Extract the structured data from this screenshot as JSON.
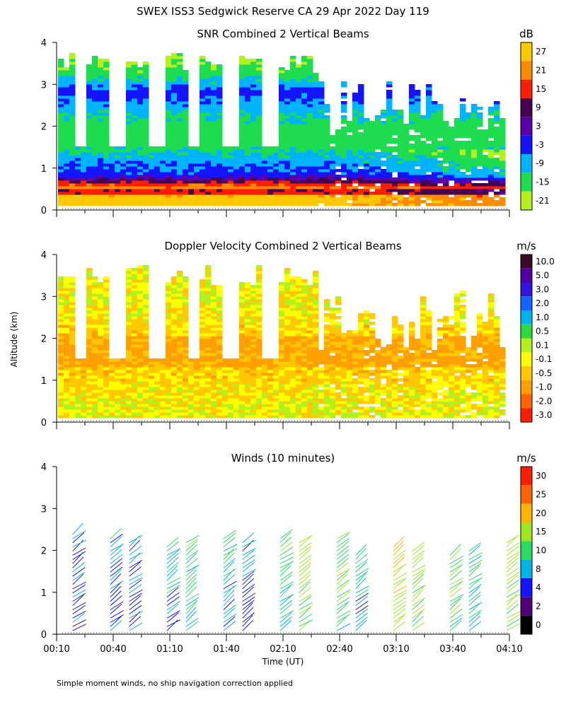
{
  "title": "SWEX ISS3 Sedgwick Reserve CA  29 Apr 2022 Day 119",
  "ylabel": "Altitude (km)",
  "xlabel": "Time (UT)",
  "footnote": "Simple moment winds, no ship navigation correction applied",
  "x_ticks": [
    "00:10",
    "00:40",
    "01:10",
    "01:40",
    "02:10",
    "02:40",
    "03:10",
    "03:40",
    "04:10"
  ],
  "y_ticks": [
    "0",
    "1",
    "2",
    "3",
    "4"
  ],
  "chart_data": [
    {
      "type": "heatmap",
      "title": "SNR Combined 2 Vertical Beams",
      "xlabel": "Time (UT)",
      "ylabel": "Altitude (km)",
      "xlim": [
        "00:10",
        "04:10"
      ],
      "ylim": [
        0,
        4
      ],
      "colorbar": {
        "unit": "dB",
        "labels": [
          "27",
          "21",
          "15",
          "9",
          "3",
          "-3",
          "-9",
          "-15",
          "-21"
        ],
        "colors": [
          "#ffc800",
          "#ff8c00",
          "#ff1e00",
          "#460050",
          "#5a00a8",
          "#1414ff",
          "#00b4ff",
          "#1edc50",
          "#b4f01e"
        ]
      },
      "profile": [
        {
          "alt_km": 0.3,
          "snr_db": 27
        },
        {
          "alt_km": 0.4,
          "snr_db": 9
        },
        {
          "alt_km": 0.5,
          "snr_db": 21
        },
        {
          "alt_km": 0.6,
          "snr_db": 15
        },
        {
          "alt_km": 0.8,
          "snr_db": -3
        },
        {
          "alt_km": 1.2,
          "snr_db": -9
        },
        {
          "alt_km": 1.5,
          "snr_db": -15
        },
        {
          "alt_km": 2.0,
          "snr_db": -15
        },
        {
          "alt_km": 2.8,
          "snr_db": -3
        },
        {
          "alt_km": 3.2,
          "snr_db": -15
        },
        {
          "alt_km": 3.9,
          "snr_db": -21
        }
      ]
    },
    {
      "type": "heatmap",
      "title": "Doppler Velocity Combined 2 Vertical Beams",
      "xlabel": "Time (UT)",
      "ylabel": "Altitude (km)",
      "xlim": [
        "00:10",
        "04:10"
      ],
      "ylim": [
        0,
        4
      ],
      "colorbar": {
        "unit": "m/s",
        "labels": [
          "10.0",
          "5.0",
          "3.0",
          "2.0",
          "1.0",
          "0.5",
          "0.1",
          "-0.1",
          "-0.5",
          "-1.0",
          "-2.0",
          "-3.0"
        ],
        "colors": [
          "#3c0a28",
          "#5000a0",
          "#3214dc",
          "#1464ff",
          "#00b4f0",
          "#28dc3c",
          "#b4f01e",
          "#ffff00",
          "#ffc800",
          "#ffa000",
          "#ff6400",
          "#ff1e00"
        ]
      },
      "profile": [
        {
          "alt_km": 0.3,
          "velocity_ms": -0.1
        },
        {
          "alt_km": 1.2,
          "velocity_ms": -0.5
        },
        {
          "alt_km": 2.0,
          "velocity_ms": -0.5
        },
        {
          "alt_km": 2.8,
          "velocity_ms": -0.1
        },
        {
          "alt_km": 3.2,
          "velocity_ms": -0.1
        }
      ]
    },
    {
      "type": "scatter",
      "title": "Winds (10 minutes)",
      "xlabel": "Time (UT)",
      "ylabel": "Altitude (km)",
      "xlim": [
        "00:10",
        "04:10"
      ],
      "ylim": [
        0,
        4
      ],
      "colorbar": {
        "unit": "m/s",
        "labels": [
          "30",
          "25",
          "20",
          "15",
          "10",
          "8",
          "4",
          "2",
          "0"
        ],
        "colors": [
          "#ff1e00",
          "#ff6400",
          "#ffb400",
          "#a0e61e",
          "#28dc64",
          "#00b4e6",
          "#1414ff",
          "#500078",
          "#000000"
        ]
      },
      "profile_times": [
        "00:20",
        "00:40",
        "00:50",
        "01:10",
        "01:20",
        "01:40",
        "01:50",
        "02:10",
        "02:20",
        "02:40",
        "02:50",
        "03:10",
        "03:20",
        "03:40",
        "03:50",
        "04:10"
      ],
      "profile_top_km": [
        2.5,
        2.4,
        2.3,
        2.2,
        2.3,
        2.4,
        2.3,
        2.4,
        2.3,
        2.4,
        2.0,
        2.2,
        2.1,
        2.0,
        2.1,
        2.3
      ],
      "profile_speed_ms": [
        4,
        4,
        4,
        6,
        8,
        6,
        4,
        8,
        12,
        10,
        6,
        14,
        12,
        10,
        8,
        12
      ],
      "barb_spacing_km": 0.1
    }
  ]
}
